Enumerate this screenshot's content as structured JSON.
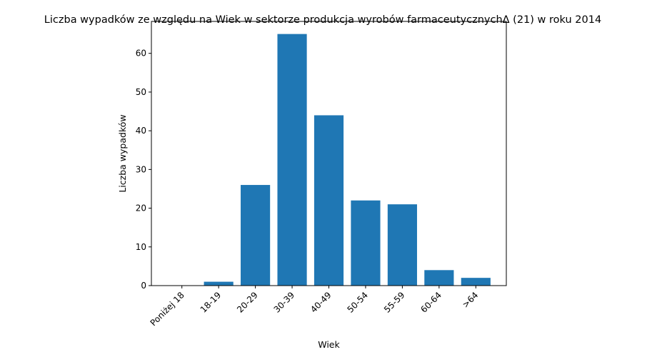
{
  "chart_data": {
    "type": "bar",
    "title": "Liczba wypadków ze względu na Wiek w sektorze produkcja wyrobów farmaceutycznychΔ (21) w roku 2014",
    "xlabel": "Wiek",
    "ylabel": "Liczba wypadków",
    "categories": [
      "Poniżej 18",
      "18-19",
      "20-29",
      "30-39",
      "40-49",
      "50-54",
      "55-59",
      "60-64",
      ">64"
    ],
    "values": [
      0,
      1,
      26,
      65,
      44,
      22,
      21,
      4,
      2
    ],
    "ylim": [
      0,
      68.25
    ],
    "yticks": [
      0,
      10,
      20,
      30,
      40,
      50,
      60
    ],
    "bar_color": "#1f77b4",
    "grid": false,
    "legend": false
  }
}
